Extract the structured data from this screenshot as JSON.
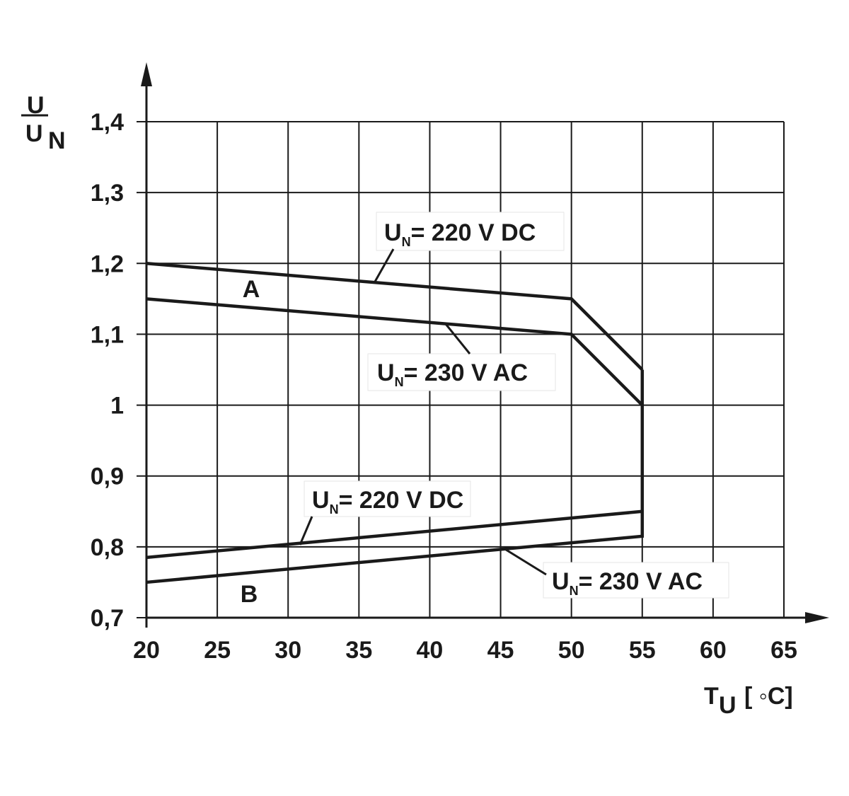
{
  "chart_data": {
    "type": "line",
    "ylabel_parts": [
      "U",
      "U",
      "N"
    ],
    "xlabel_parts": [
      "T",
      "U",
      "[ ◦C]"
    ],
    "xlim": [
      20,
      65
    ],
    "xticks": [
      20,
      25,
      30,
      35,
      40,
      45,
      50,
      55,
      60,
      65
    ],
    "ylim": [
      0.7,
      1.4
    ],
    "yticks": [
      {
        "value": 0.7,
        "label": "0,7"
      },
      {
        "value": 0.8,
        "label": "0,8"
      },
      {
        "value": 0.9,
        "label": "0,9"
      },
      1,
      {
        "value": 1.1,
        "label": "1,1"
      },
      {
        "value": 1.2,
        "label": "1,2"
      },
      {
        "value": 1.3,
        "label": "1,3"
      },
      {
        "value": 1.4,
        "label": "1,4"
      }
    ],
    "grid": true,
    "annotations": [
      "A",
      "B"
    ],
    "series": [
      {
        "label_parts": [
          "U",
          "N",
          "= 220 V DC"
        ],
        "color": "#1a1a1a",
        "x": [
          20,
          50,
          55
        ],
        "values": [
          1.2,
          1.15,
          1.05
        ]
      },
      {
        "label_parts": [
          "U",
          "N",
          "= 230 V AC"
        ],
        "color": "#1a1a1a",
        "x": [
          20,
          50,
          55
        ],
        "values": [
          1.15,
          1.1,
          1.0
        ]
      },
      {
        "label_parts": [
          "U",
          "N",
          "= 220 V DC"
        ],
        "color": "#1a1a1a",
        "x": [
          20,
          55
        ],
        "values": [
          0.785,
          0.85
        ]
      },
      {
        "label_parts": [
          "U",
          "N",
          "= 230 V AC"
        ],
        "color": "#1a1a1a",
        "x": [
          20,
          55,
          55
        ],
        "values": [
          0.75,
          0.815,
          1.05
        ]
      }
    ]
  }
}
